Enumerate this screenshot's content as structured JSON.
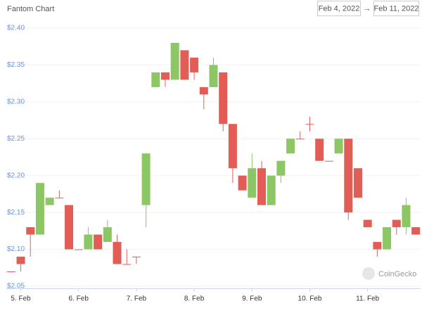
{
  "header": {
    "title": "Fantom Chart",
    "date_from": "Feb 4, 2022",
    "date_separator": "→",
    "date_to": "Feb 11, 2022"
  },
  "watermark": "CoinGecko",
  "chart_data": {
    "type": "candlestick",
    "categories": [
      null,
      "5. Feb",
      null,
      null,
      null,
      null,
      null,
      "6. Feb",
      null,
      null,
      null,
      null,
      null,
      "7. Feb",
      null,
      null,
      null,
      null,
      null,
      "8. Feb",
      null,
      null,
      null,
      null,
      null,
      "9. Feb",
      null,
      null,
      null,
      null,
      null,
      "10. Feb",
      null,
      null,
      null,
      null,
      null,
      "11. Feb",
      null,
      null,
      null,
      null,
      null
    ],
    "open": [
      2.07,
      2.09,
      2.13,
      2.12,
      2.16,
      2.17,
      2.16,
      2.1,
      2.1,
      2.12,
      2.11,
      2.11,
      2.08,
      2.09,
      2.16,
      2.32,
      2.34,
      2.33,
      2.37,
      2.36,
      2.32,
      2.32,
      2.34,
      2.27,
      2.2,
      2.17,
      2.21,
      2.16,
      2.2,
      2.23,
      2.25,
      2.27,
      2.25,
      2.22,
      2.23,
      2.25,
      2.21,
      2.14,
      2.11,
      2.1,
      2.14,
      2.13,
      2.13
    ],
    "high": [
      2.07,
      2.09,
      2.13,
      2.19,
      2.17,
      2.18,
      2.16,
      2.1,
      2.13,
      2.12,
      2.14,
      2.12,
      2.1,
      2.09,
      2.23,
      2.34,
      2.34,
      2.38,
      2.37,
      2.36,
      2.32,
      2.36,
      2.34,
      2.27,
      2.2,
      2.23,
      2.22,
      2.2,
      2.22,
      2.25,
      2.26,
      2.28,
      2.25,
      2.22,
      2.25,
      2.25,
      2.21,
      2.14,
      2.11,
      2.13,
      2.14,
      2.17,
      2.13
    ],
    "low": [
      2.07,
      2.07,
      2.09,
      2.12,
      2.16,
      2.17,
      2.1,
      2.1,
      2.1,
      2.1,
      2.11,
      2.08,
      2.08,
      2.08,
      2.13,
      2.32,
      2.32,
      2.33,
      2.33,
      2.33,
      2.29,
      2.32,
      2.26,
      2.19,
      2.18,
      2.17,
      2.16,
      2.16,
      2.19,
      2.23,
      2.25,
      2.26,
      2.22,
      2.22,
      2.23,
      2.14,
      2.17,
      2.13,
      2.09,
      2.1,
      2.12,
      2.12,
      2.12
    ],
    "close": [
      2.07,
      2.08,
      2.12,
      2.19,
      2.17,
      2.17,
      2.1,
      2.1,
      2.12,
      2.1,
      2.13,
      2.08,
      2.08,
      2.09,
      2.23,
      2.34,
      2.33,
      2.38,
      2.33,
      2.34,
      2.31,
      2.35,
      2.27,
      2.21,
      2.18,
      2.21,
      2.16,
      2.2,
      2.22,
      2.25,
      2.25,
      2.27,
      2.22,
      2.22,
      2.25,
      2.15,
      2.17,
      2.13,
      2.1,
      2.13,
      2.13,
      2.16,
      2.12
    ],
    "up_color": "#8cc665",
    "down_color": "#e35d57",
    "ylim": [
      2.05,
      2.4
    ],
    "yticks": [
      {
        "value": 2.05,
        "label": "$2.05"
      },
      {
        "value": 2.1,
        "label": "$2.10"
      },
      {
        "value": 2.15,
        "label": "$2.15"
      },
      {
        "value": 2.2,
        "label": "$2.20"
      },
      {
        "value": 2.25,
        "label": "$2.25"
      },
      {
        "value": 2.3,
        "label": "$2.30"
      },
      {
        "value": 2.35,
        "label": "$2.35"
      },
      {
        "value": 2.4,
        "label": "$2.40"
      }
    ],
    "grid": true
  }
}
